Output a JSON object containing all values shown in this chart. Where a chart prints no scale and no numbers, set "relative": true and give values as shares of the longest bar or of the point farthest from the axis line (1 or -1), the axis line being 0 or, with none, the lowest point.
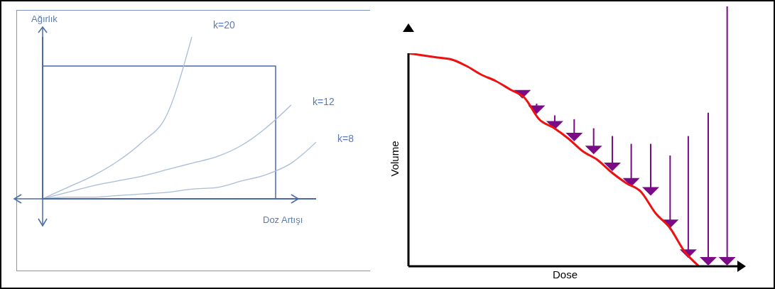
{
  "chart_data": [
    {
      "type": "line",
      "relative": true,
      "xlabel": "Doz Artışı",
      "ylabel": "Ağırlık",
      "categories": [
        null,
        null,
        null,
        null,
        null,
        null,
        null,
        null,
        null,
        null,
        null,
        null
      ],
      "marker": "none",
      "series": [
        {
          "name": "k=20",
          "color": "#a9bcd8",
          "values": [
            0,
            0.07,
            0.14,
            0.23,
            0.35,
            0.52,
            1.0,
            null,
            null,
            null,
            null,
            null
          ]
        },
        {
          "name": "k=12",
          "color": "#a9bcd8",
          "values": [
            0,
            0.04,
            0.08,
            0.11,
            0.14,
            0.18,
            0.22,
            0.26,
            0.33,
            0.44,
            0.58,
            null
          ]
        },
        {
          "name": "k=8",
          "color": "#a9bcd8",
          "values": [
            0,
            0.01,
            0.01,
            0.02,
            0.03,
            0.04,
            0.06,
            0.07,
            0.11,
            0.15,
            0.22,
            0.35
          ]
        }
      ]
    },
    {
      "type": "line",
      "relative": true,
      "xlabel": "Dose",
      "ylabel": "Volume",
      "categories": [
        null,
        null,
        null,
        null,
        null,
        null,
        null,
        null,
        null,
        null,
        null,
        null,
        null,
        null,
        null,
        null,
        null,
        null,
        null,
        null,
        null
      ],
      "marker": "none",
      "series": [
        {
          "color": "#ee1111",
          "values": [
            1.0,
            0.99,
            0.98,
            0.97,
            0.94,
            0.9,
            0.87,
            0.83,
            0.79,
            0.69,
            0.65,
            0.6,
            0.54,
            0.5,
            0.44,
            0.39,
            0.35,
            0.25,
            0.18,
            0.07,
            0
          ]
        }
      ]
    }
  ]
}
